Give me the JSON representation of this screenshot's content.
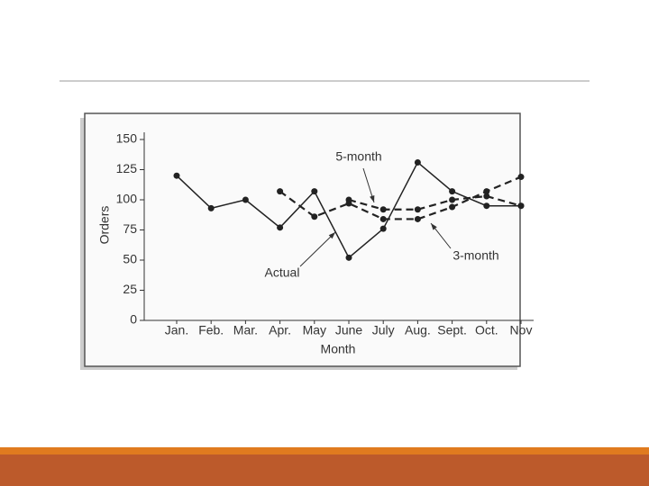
{
  "chart_data": {
    "type": "line",
    "categories": [
      "Jan.",
      "Feb.",
      "Mar.",
      "Apr.",
      "May",
      "June",
      "July",
      "Aug.",
      "Sept.",
      "Oct.",
      "Nov"
    ],
    "series": [
      {
        "name": "Actual",
        "color": "#222222",
        "dash": false,
        "values": [
          120,
          93,
          100,
          77,
          107,
          52,
          76,
          131,
          107,
          95,
          95
        ]
      },
      {
        "name": "5-month",
        "color": "#222222",
        "dash": true,
        "values": [
          null,
          null,
          null,
          null,
          null,
          100,
          92,
          92,
          100,
          103,
          95
        ]
      },
      {
        "name": "3-month",
        "color": "#222222",
        "dash": true,
        "values": [
          null,
          null,
          null,
          107,
          86,
          97,
          84,
          84,
          94,
          107,
          119
        ]
      }
    ],
    "xlabel": "Month",
    "ylabel": "Orders",
    "ylim": [
      0,
      150
    ],
    "yticks": [
      0,
      25,
      50,
      75,
      100,
      125,
      150
    ]
  }
}
